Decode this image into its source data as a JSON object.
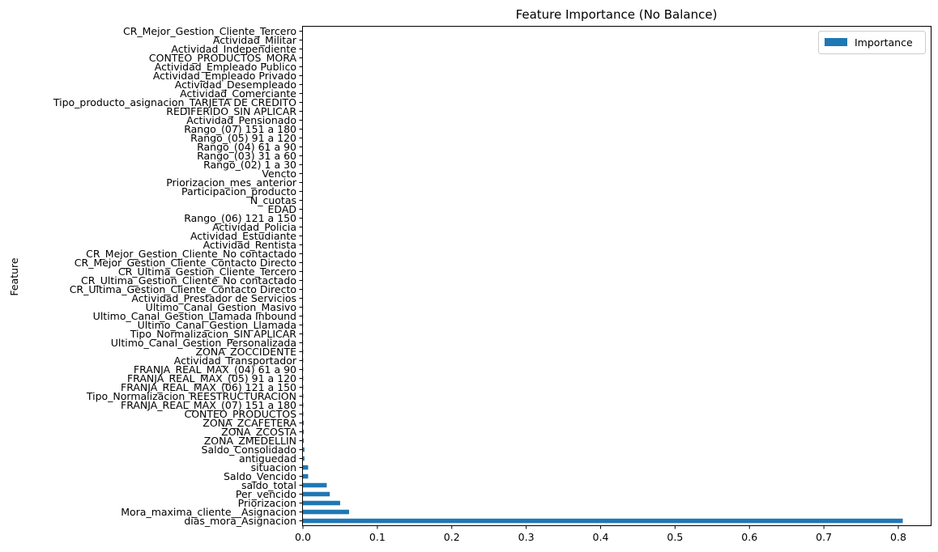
{
  "chart_data": {
    "type": "bar",
    "orientation": "horizontal",
    "title": "Feature Importance (No Balance)",
    "xlabel": "",
    "ylabel": "Feature",
    "xlim": [
      0,
      0.85
    ],
    "xticks": [
      "0.0",
      "0.1",
      "0.2",
      "0.3",
      "0.4",
      "0.5",
      "0.6",
      "0.7",
      "0.8"
    ],
    "grid": false,
    "legend_position": "top-right",
    "color": "#1f77b4",
    "series": [
      {
        "name": "Importance",
        "categories": [
          "dias_mora_Asignacion",
          "Mora_maxima_cliente__Asignacion",
          "Priorizacion",
          "Per_vencido",
          "saldo_total",
          "Saldo_Vencido",
          "situacion",
          "antiguedad",
          "Saldo_Consolidado",
          "ZONA_ZMEDELLIN",
          "ZONA_ZCOSTA",
          "ZONA_ZCAFETERA",
          "CONTEO_PRODUCTOS",
          "FRANJA_REAL_MAX_(07) 151 a 180",
          "Tipo_Normalizacion_REESTRUCTURACION",
          "FRANJA_REAL_MAX_(06) 121 a 150",
          "FRANJA_REAL_MAX_(05) 91 a 120",
          "FRANJA_REAL_MAX_(04) 61 a 90",
          "Actividad_Transportador",
          "ZONA_ZOCCIDENTE",
          "Ultimo_Canal_Gestion_Personalizada",
          "Tipo_Normalizacion_SIN APLICAR",
          "Ultimo_Canal_Gestion_Llamada",
          "Ultimo_Canal_Gestion_Llamada Inbound",
          "Ultimo_Canal_Gestion_Masivo",
          "Actividad_Prestador de Servicios",
          "CR_Ultima_Gestion_Cliente_Contacto Directo",
          "CR_Ultima_Gestion_Cliente_No contactado",
          "CR_Ultima_Gestion_Cliente_Tercero",
          "CR_Mejor_Gestion_Cliente_Contacto Directo",
          "CR_Mejor_Gestion_Cliente_No contactado",
          "Actividad_Rentista",
          "Actividad_Estudiante",
          "Actividad_Policia",
          "Rango_(06) 121 a 150",
          "EDAD",
          "N_cuotas",
          "Participacion_producto",
          "Priorizacion_mes_anterior",
          "Vencto",
          "Rango_(02) 1 a 30",
          "Rango_(03) 31 a 60",
          "Rango_(04) 61 a 90",
          "Rango_(05) 91 a 120",
          "Rango_(07) 151 a 180",
          "Actividad_Pensionado",
          "REDIFERIDO_SIN APLICAR",
          "Tipo_producto_asignacion_TARJETA DE CREDITO",
          "Actividad_Comerciante",
          "Actividad_Desempleado",
          "Actividad_Empleado Privado",
          "Actividad_Empleado Publico",
          "CONTEO_PRODUCTOS_MORA",
          "Actividad_Independiente",
          "Actividad_Militar",
          "CR_Mejor_Gestion_Cliente_Tercero"
        ],
        "values": [
          0.806,
          0.062,
          0.05,
          0.036,
          0.032,
          0.007,
          0.007,
          0.002,
          0.002,
          0.001,
          0.001,
          0.001,
          0.0005,
          0.0005,
          0.0005,
          0.0004,
          0.0004,
          0.0003,
          0.0003,
          0.0003,
          0.0002,
          0.0002,
          0.0002,
          0.0002,
          0.0002,
          0.0001,
          0.0001,
          0.0001,
          0.0001,
          0.0001,
          0.0001,
          0.0001,
          0,
          0,
          0,
          0,
          0,
          0,
          0,
          0,
          0,
          0,
          0,
          0,
          0,
          0,
          0,
          0,
          0,
          0,
          0,
          0,
          0,
          0,
          0,
          0
        ]
      }
    ]
  }
}
